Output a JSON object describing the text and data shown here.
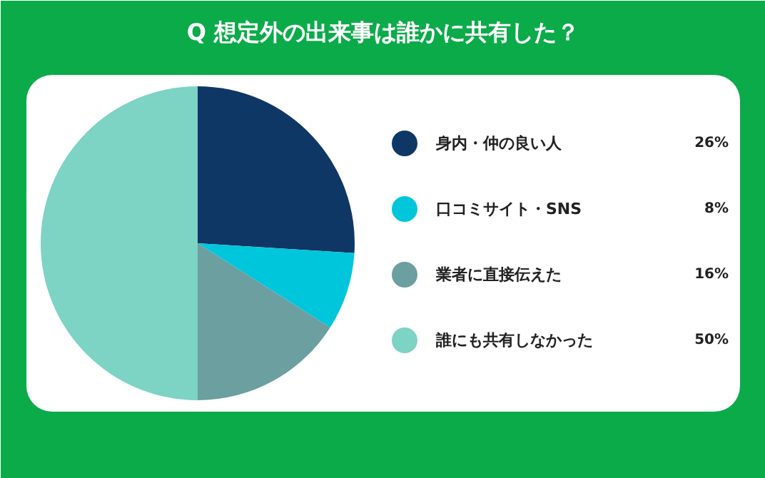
{
  "chart_data": {
    "type": "pie",
    "title": "Q 想定外の出来事は誰かに共有した？",
    "categories": [
      "身内・仲の良い人",
      "口コミサイト・SNS",
      "業者に直接伝えた",
      "誰にも共有しなかった"
    ],
    "values": [
      26,
      8,
      16,
      50
    ],
    "value_labels": [
      "26%",
      "8%",
      "16%",
      "50%"
    ],
    "colors": [
      "#0e3766",
      "#00c6dc",
      "#6b9fa0",
      "#7dd3c4"
    ],
    "legend": "right"
  }
}
